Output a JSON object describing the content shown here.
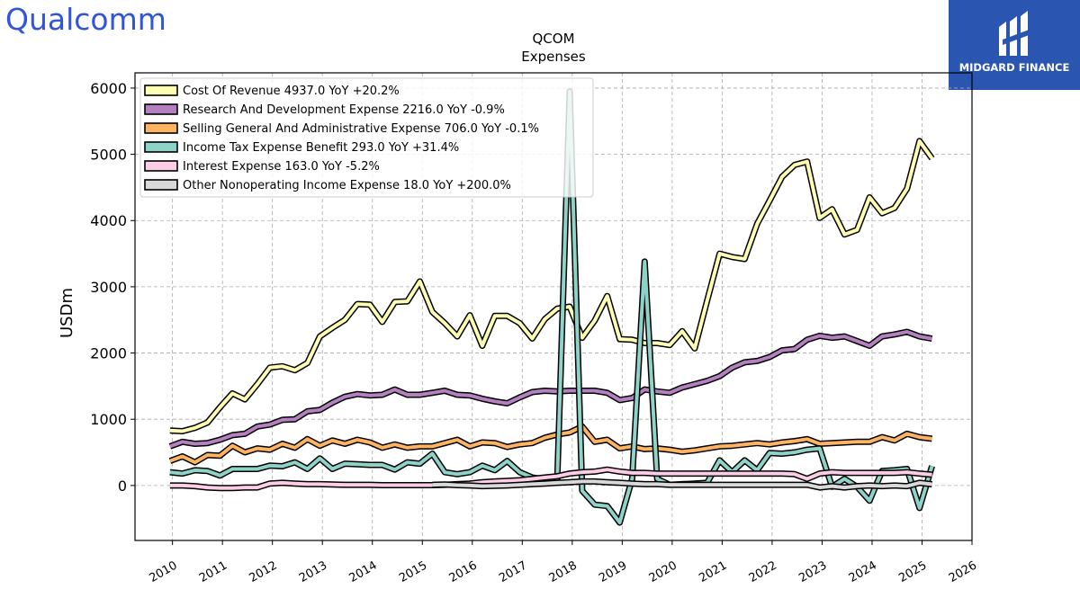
{
  "brand": {
    "left_logo": "Qualcomm",
    "right_logo": "MIDGARD FINANCE"
  },
  "chart_data": {
    "type": "line",
    "title": "QCOM",
    "subtitle": "Expenses",
    "ylabel": "USDm",
    "xlabel": "",
    "xlim": [
      2009.25,
      2026.0
    ],
    "ylim": [
      -830,
      6230
    ],
    "x_ticks": [
      "2010",
      "2011",
      "2012",
      "2013",
      "2014",
      "2015",
      "2016",
      "2017",
      "2018",
      "2019",
      "2020",
      "2021",
      "2022",
      "2023",
      "2024",
      "2025",
      "2026"
    ],
    "y_ticks": [
      "0",
      "1000",
      "2000",
      "3000",
      "4000",
      "5000",
      "6000"
    ],
    "grid": true,
    "legend_position": "top-left",
    "series": [
      {
        "name": "Cost Of Revenue  4937.0 YoY +20.2%",
        "color": "#ffffb3",
        "x": [
          2009.95,
          2010.2,
          2010.45,
          2010.7,
          2010.95,
          2011.2,
          2011.45,
          2011.7,
          2011.95,
          2012.2,
          2012.45,
          2012.7,
          2012.95,
          2013.2,
          2013.45,
          2013.7,
          2013.95,
          2014.2,
          2014.45,
          2014.7,
          2014.95,
          2015.2,
          2015.45,
          2015.7,
          2015.95,
          2016.2,
          2016.45,
          2016.7,
          2016.95,
          2017.2,
          2017.45,
          2017.7,
          2017.95,
          2018.2,
          2018.45,
          2018.7,
          2018.95,
          2019.2,
          2019.45,
          2019.7,
          2019.95,
          2020.2,
          2020.45,
          2020.7,
          2020.95,
          2021.2,
          2021.45,
          2021.7,
          2021.95,
          2022.2,
          2022.45,
          2022.7,
          2022.95,
          2023.2,
          2023.45,
          2023.7,
          2023.95,
          2024.2,
          2024.45,
          2024.7,
          2024.95,
          2025.2
        ],
        "y": [
          830,
          820,
          870,
          950,
          1180,
          1390,
          1300,
          1530,
          1780,
          1800,
          1740,
          1850,
          2250,
          2380,
          2500,
          2740,
          2730,
          2470,
          2770,
          2780,
          3080,
          2620,
          2450,
          2250,
          2570,
          2110,
          2560,
          2560,
          2450,
          2220,
          2510,
          2670,
          2700,
          2230,
          2490,
          2860,
          2210,
          2200,
          2150,
          2150,
          2120,
          2330,
          2070,
          2790,
          3500,
          3450,
          3420,
          3950,
          4300,
          4660,
          4840,
          4890,
          4040,
          4170,
          3790,
          3860,
          4350,
          4110,
          4190,
          4480,
          5200,
          4937
        ]
      },
      {
        "name": "Research And Development Expense  2216.0 YoY -0.9%",
        "color": "#b580c0",
        "x": [
          2009.95,
          2010.2,
          2010.45,
          2010.7,
          2010.95,
          2011.2,
          2011.45,
          2011.7,
          2011.95,
          2012.2,
          2012.45,
          2012.7,
          2012.95,
          2013.2,
          2013.45,
          2013.7,
          2013.95,
          2014.2,
          2014.45,
          2014.7,
          2014.95,
          2015.2,
          2015.45,
          2015.7,
          2015.95,
          2016.2,
          2016.45,
          2016.7,
          2016.95,
          2017.2,
          2017.45,
          2017.7,
          2017.95,
          2018.2,
          2018.45,
          2018.7,
          2018.95,
          2019.2,
          2019.45,
          2019.7,
          2019.95,
          2020.2,
          2020.45,
          2020.7,
          2020.95,
          2021.2,
          2021.45,
          2021.7,
          2021.95,
          2022.2,
          2022.45,
          2022.7,
          2022.95,
          2023.2,
          2023.45,
          2023.7,
          2023.95,
          2024.2,
          2024.45,
          2024.7,
          2024.95,
          2025.2
        ],
        "y": [
          590,
          660,
          630,
          640,
          690,
          760,
          780,
          890,
          920,
          990,
          1000,
          1120,
          1140,
          1250,
          1340,
          1380,
          1360,
          1370,
          1450,
          1370,
          1370,
          1400,
          1430,
          1370,
          1360,
          1310,
          1270,
          1240,
          1330,
          1410,
          1430,
          1420,
          1430,
          1430,
          1430,
          1400,
          1290,
          1320,
          1450,
          1420,
          1400,
          1480,
          1530,
          1580,
          1650,
          1780,
          1860,
          1880,
          1940,
          2040,
          2060,
          2200,
          2260,
          2230,
          2250,
          2180,
          2110,
          2250,
          2280,
          2320,
          2250,
          2216
        ]
      },
      {
        "name": "Selling General And Administrative Expense  706.0 YoY -0.1%",
        "color": "#fdb462",
        "x": [
          2009.95,
          2010.2,
          2010.45,
          2010.7,
          2010.95,
          2011.2,
          2011.45,
          2011.7,
          2011.95,
          2012.2,
          2012.45,
          2012.7,
          2012.95,
          2013.2,
          2013.45,
          2013.7,
          2013.95,
          2014.2,
          2014.45,
          2014.7,
          2014.95,
          2015.2,
          2015.45,
          2015.7,
          2015.95,
          2016.2,
          2016.45,
          2016.7,
          2016.95,
          2017.2,
          2017.45,
          2017.7,
          2017.95,
          2018.2,
          2018.45,
          2018.7,
          2018.95,
          2019.2,
          2019.45,
          2019.7,
          2019.95,
          2020.2,
          2020.45,
          2020.7,
          2020.95,
          2021.2,
          2021.45,
          2021.7,
          2021.95,
          2022.2,
          2022.45,
          2022.7,
          2022.95,
          2023.2,
          2023.45,
          2023.7,
          2023.95,
          2024.2,
          2024.45,
          2024.7,
          2024.95,
          2025.2
        ],
        "y": [
          370,
          440,
          350,
          460,
          450,
          600,
          500,
          560,
          540,
          630,
          570,
          700,
          600,
          680,
          630,
          690,
          650,
          570,
          620,
          570,
          590,
          590,
          640,
          690,
          590,
          650,
          640,
          580,
          620,
          640,
          720,
          770,
          800,
          890,
          660,
          690,
          560,
          590,
          550,
          560,
          540,
          510,
          530,
          560,
          590,
          600,
          620,
          640,
          620,
          650,
          670,
          700,
          630,
          640,
          650,
          660,
          660,
          730,
          680,
          780,
          730,
          706
        ]
      },
      {
        "name": "Income Tax Expense Benefit  293.0 YoY +31.4%",
        "color": "#8dd3c7",
        "x": [
          2009.95,
          2010.2,
          2010.45,
          2010.7,
          2010.95,
          2011.2,
          2011.45,
          2011.7,
          2011.95,
          2012.2,
          2012.45,
          2012.7,
          2012.95,
          2013.2,
          2013.45,
          2013.7,
          2013.95,
          2014.2,
          2014.45,
          2014.7,
          2014.95,
          2015.2,
          2015.45,
          2015.7,
          2015.95,
          2016.2,
          2016.45,
          2016.7,
          2016.95,
          2017.2,
          2017.45,
          2017.7,
          2017.95,
          2018.2,
          2018.45,
          2018.7,
          2018.95,
          2019.2,
          2019.45,
          2019.7,
          2019.95,
          2020.2,
          2020.45,
          2020.7,
          2020.95,
          2021.2,
          2021.45,
          2021.7,
          2021.95,
          2022.2,
          2022.45,
          2022.7,
          2022.95,
          2023.2,
          2023.45,
          2023.7,
          2023.95,
          2024.2,
          2024.45,
          2024.7,
          2024.95,
          2025.2
        ],
        "y": [
          200,
          180,
          230,
          220,
          150,
          250,
          250,
          250,
          300,
          290,
          350,
          250,
          410,
          250,
          330,
          320,
          310,
          310,
          240,
          350,
          330,
          480,
          200,
          170,
          200,
          300,
          230,
          370,
          200,
          120,
          90,
          100,
          5950,
          -80,
          -290,
          -310,
          -560,
          100,
          3380,
          100,
          10,
          20,
          30,
          40,
          380,
          200,
          380,
          230,
          490,
          480,
          500,
          540,
          560,
          -20,
          100,
          -20,
          -230,
          220,
          230,
          250,
          -340,
          293
        ]
      },
      {
        "name": "Interest Expense  163.0 YoY -5.2%",
        "color": "#fccde5",
        "x": [
          2009.95,
          2010.2,
          2010.45,
          2010.7,
          2010.95,
          2011.2,
          2011.45,
          2011.7,
          2011.95,
          2012.2,
          2012.45,
          2012.7,
          2012.95,
          2013.2,
          2013.45,
          2013.7,
          2013.95,
          2014.2,
          2014.45,
          2014.7,
          2014.95,
          2015.2,
          2015.45,
          2015.7,
          2015.95,
          2016.2,
          2016.45,
          2016.7,
          2016.95,
          2017.2,
          2017.45,
          2017.7,
          2017.95,
          2018.2,
          2018.45,
          2018.7,
          2018.95,
          2019.2,
          2019.45,
          2019.7,
          2019.95,
          2020.2,
          2020.45,
          2020.7,
          2020.95,
          2021.2,
          2021.45,
          2021.7,
          2021.95,
          2022.2,
          2022.45,
          2022.7,
          2022.95,
          2023.2,
          2023.45,
          2023.7,
          2023.95,
          2024.2,
          2024.45,
          2024.7,
          2024.95,
          2025.2
        ],
        "y": [
          0,
          0,
          -10,
          -30,
          -40,
          -40,
          -30,
          -30,
          30,
          40,
          30,
          20,
          20,
          15,
          10,
          10,
          10,
          5,
          5,
          5,
          5,
          5,
          10,
          20,
          30,
          50,
          60,
          70,
          80,
          100,
          120,
          140,
          180,
          200,
          210,
          240,
          210,
          190,
          190,
          180,
          180,
          180,
          180,
          180,
          180,
          180,
          180,
          180,
          180,
          180,
          170,
          100,
          180,
          200,
          190,
          190,
          190,
          190,
          190,
          200,
          180,
          163
        ]
      },
      {
        "name": "Other Nonoperating Income Expense  18.0 YoY +200.0%",
        "color": "#d9d9d9",
        "x": [
          2015.2,
          2015.45,
          2015.7,
          2015.95,
          2016.2,
          2016.45,
          2016.7,
          2016.95,
          2017.2,
          2017.45,
          2017.7,
          2017.95,
          2018.2,
          2018.45,
          2018.7,
          2018.95,
          2019.2,
          2019.45,
          2019.7,
          2019.95,
          2020.2,
          2020.45,
          2020.7,
          2020.95,
          2021.2,
          2021.45,
          2021.7,
          2021.95,
          2022.2,
          2022.45,
          2022.7,
          2022.95,
          2023.2,
          2023.45,
          2023.7,
          2023.95,
          2024.2,
          2024.45,
          2024.7,
          2024.95,
          2025.2
        ],
        "y": [
          10,
          15,
          5,
          0,
          -10,
          -5,
          0,
          10,
          20,
          30,
          40,
          50,
          60,
          60,
          50,
          40,
          30,
          20,
          20,
          10,
          10,
          10,
          10,
          10,
          10,
          10,
          10,
          10,
          10,
          10,
          10,
          -30,
          -10,
          -30,
          -10,
          0,
          -10,
          0,
          -10,
          40,
          18
        ]
      }
    ]
  }
}
